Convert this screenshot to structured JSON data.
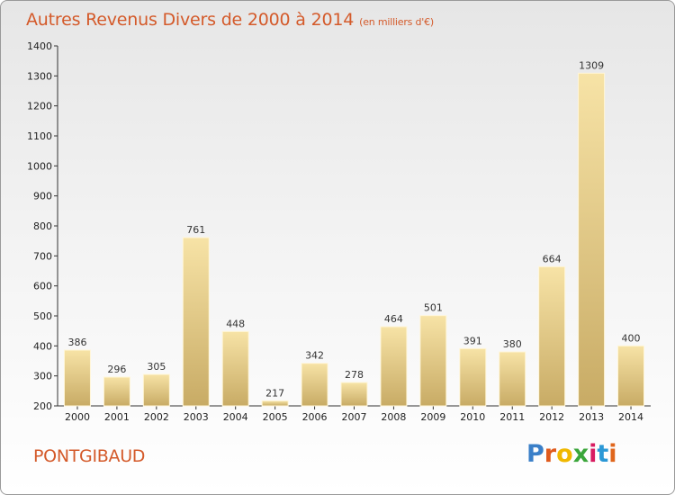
{
  "title": "Autres Revenus Divers de 2000 à 2014",
  "subtitle": "(en milliers d'€)",
  "city": "PONTGIBAUD",
  "logo": {
    "text": "Proxiti",
    "colors": [
      "#3a7fc8",
      "#e05a1c",
      "#f0b800",
      "#3aa63a",
      "#d81b60",
      "#2b98d6",
      "#e0661c"
    ]
  },
  "colors": {
    "title": "#d45a2a",
    "bar_light": "#f7e3a6",
    "bar_dark": "#c8ab65",
    "axis": "#333333"
  },
  "chart_data": {
    "type": "bar",
    "title": "Autres Revenus Divers de 2000 à 2014",
    "xlabel": "",
    "ylabel": "",
    "categories": [
      "2000",
      "2001",
      "2002",
      "2003",
      "2004",
      "2005",
      "2006",
      "2007",
      "2008",
      "2009",
      "2010",
      "2011",
      "2012",
      "2013",
      "2014"
    ],
    "values": [
      386,
      296,
      305,
      761,
      448,
      217,
      342,
      278,
      464,
      501,
      391,
      380,
      664,
      1309,
      400
    ],
    "data_labels": [
      "386",
      "296",
      "305",
      "761",
      "448",
      "217",
      "342",
      "278",
      "464",
      "501",
      "391",
      "380",
      "664",
      "1309",
      "400"
    ],
    "ylim": [
      200,
      1400
    ],
    "yticks": [
      200,
      300,
      400,
      500,
      600,
      700,
      800,
      900,
      1000,
      1100,
      1200,
      1300,
      1400
    ],
    "grid": false,
    "legend": "none"
  }
}
